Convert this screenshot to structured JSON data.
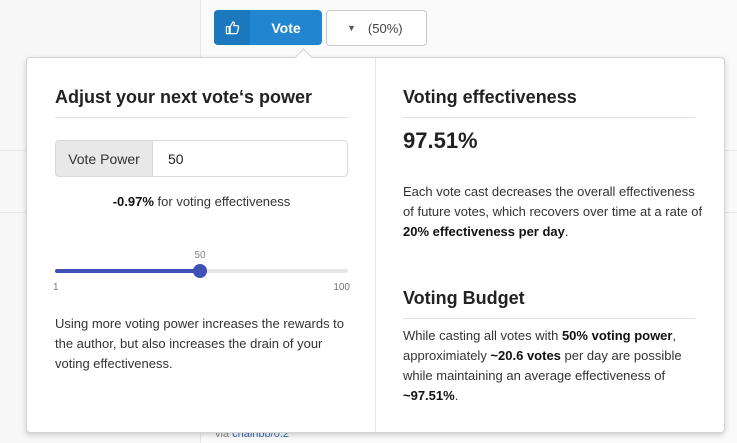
{
  "top_bar": {
    "vote_label": "Vote",
    "weight_display": "(50%)"
  },
  "adjust": {
    "heading": "Adjust your next vote‘s power",
    "vote_power_label": "Vote Power",
    "vote_power_value": "50",
    "effectiveness_change": "-0.97%",
    "effectiveness_change_suffix": " for voting effectiveness",
    "slider": {
      "min": 1,
      "max": 100,
      "value": 50,
      "min_label": "1",
      "max_label": "100",
      "value_label": "50"
    },
    "description": "Using more voting power increases the rewards to the author, but also increases the drain of your voting effectiveness."
  },
  "effectiveness": {
    "heading": "Voting effectiveness",
    "value": "97.51%",
    "desc_pre": "Each vote cast decreases the overall effectiveness of future votes, which recovers over time at a rate of ",
    "desc_bold": "20% effectiveness per day",
    "desc_post": "."
  },
  "budget": {
    "heading": "Voting Budget",
    "desc_pre": "While casting all votes with ",
    "desc_bold1": "50% voting power",
    "desc_mid": ", approximiately ",
    "desc_bold2": "~20.6 votes",
    "desc_mid2": " per day are possible while maintaining an average effectiveness of ",
    "desc_bold3": "~97.51%",
    "desc_post": "."
  },
  "footer": {
    "via_prefix": "via ",
    "via_link": "chainbb/0.2"
  },
  "colors": {
    "primary": "#2185d0",
    "slider": "#3f51b5"
  },
  "icons": {
    "vote_button": "thumbs-up-icon",
    "dropdown": "caret-down-icon"
  }
}
